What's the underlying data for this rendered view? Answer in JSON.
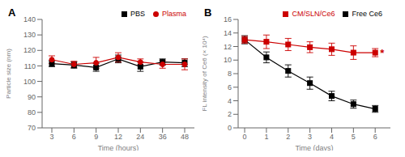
{
  "chart_data": [
    {
      "type": "line",
      "title": "A",
      "xlabel": "Time (hours)",
      "ylabel": "Particle size (nm)",
      "categories": [
        "3",
        "6",
        "9",
        "12",
        "24",
        "36",
        "48"
      ],
      "ylim": [
        70,
        140
      ],
      "yticks": [
        70,
        80,
        90,
        100,
        110,
        120,
        130,
        140
      ],
      "grid": false,
      "legend": "upper right",
      "series": [
        {
          "name": "PBS",
          "color": "#000000",
          "marker": "square",
          "values": [
            111.5,
            110.5,
            109.0,
            114.5,
            109.5,
            112.5,
            112.0
          ],
          "errors": [
            2.0,
            2.0,
            2.5,
            2.5,
            3.0,
            2.0,
            2.5
          ]
        },
        {
          "name": "Plasma",
          "color": "#cc0000",
          "marker": "circle",
          "values": [
            114.0,
            111.0,
            112.0,
            115.5,
            112.5,
            111.0,
            111.0
          ],
          "errors": [
            2.5,
            2.0,
            3.5,
            3.0,
            2.0,
            2.5,
            3.5
          ]
        }
      ]
    },
    {
      "type": "line",
      "title": "B",
      "xlabel": "Time (days)",
      "ylabel": "FL intensity of Ce6 (× 10⁴)",
      "x": [
        0,
        1,
        2,
        3,
        4,
        5,
        6
      ],
      "xlim": [
        -0.3,
        6.7
      ],
      "xticks": [
        0,
        1,
        2,
        3,
        4,
        5,
        6
      ],
      "ylim": [
        0,
        16
      ],
      "yticks": [
        0,
        2,
        4,
        6,
        8,
        10,
        12,
        14,
        16
      ],
      "grid": false,
      "legend": "upper right",
      "series": [
        {
          "name": "Free Ce6",
          "color": "#000000",
          "marker": "square",
          "values": [
            13.0,
            10.4,
            8.4,
            6.6,
            4.7,
            3.5,
            2.8
          ],
          "errors": [
            0.6,
            0.8,
            0.9,
            0.9,
            0.7,
            0.6,
            0.5
          ]
        },
        {
          "name": "CM/SLN/Ce6",
          "color": "#cc0000",
          "marker": "square",
          "values": [
            13.0,
            12.7,
            12.3,
            11.9,
            11.6,
            11.1,
            11.1
          ],
          "errors": [
            0.5,
            1.0,
            0.9,
            0.8,
            0.9,
            1.0,
            0.6
          ]
        }
      ],
      "annotations": [
        {
          "text": "*",
          "x": 6,
          "y": 11.1,
          "color": "#cc0000"
        }
      ]
    }
  ]
}
